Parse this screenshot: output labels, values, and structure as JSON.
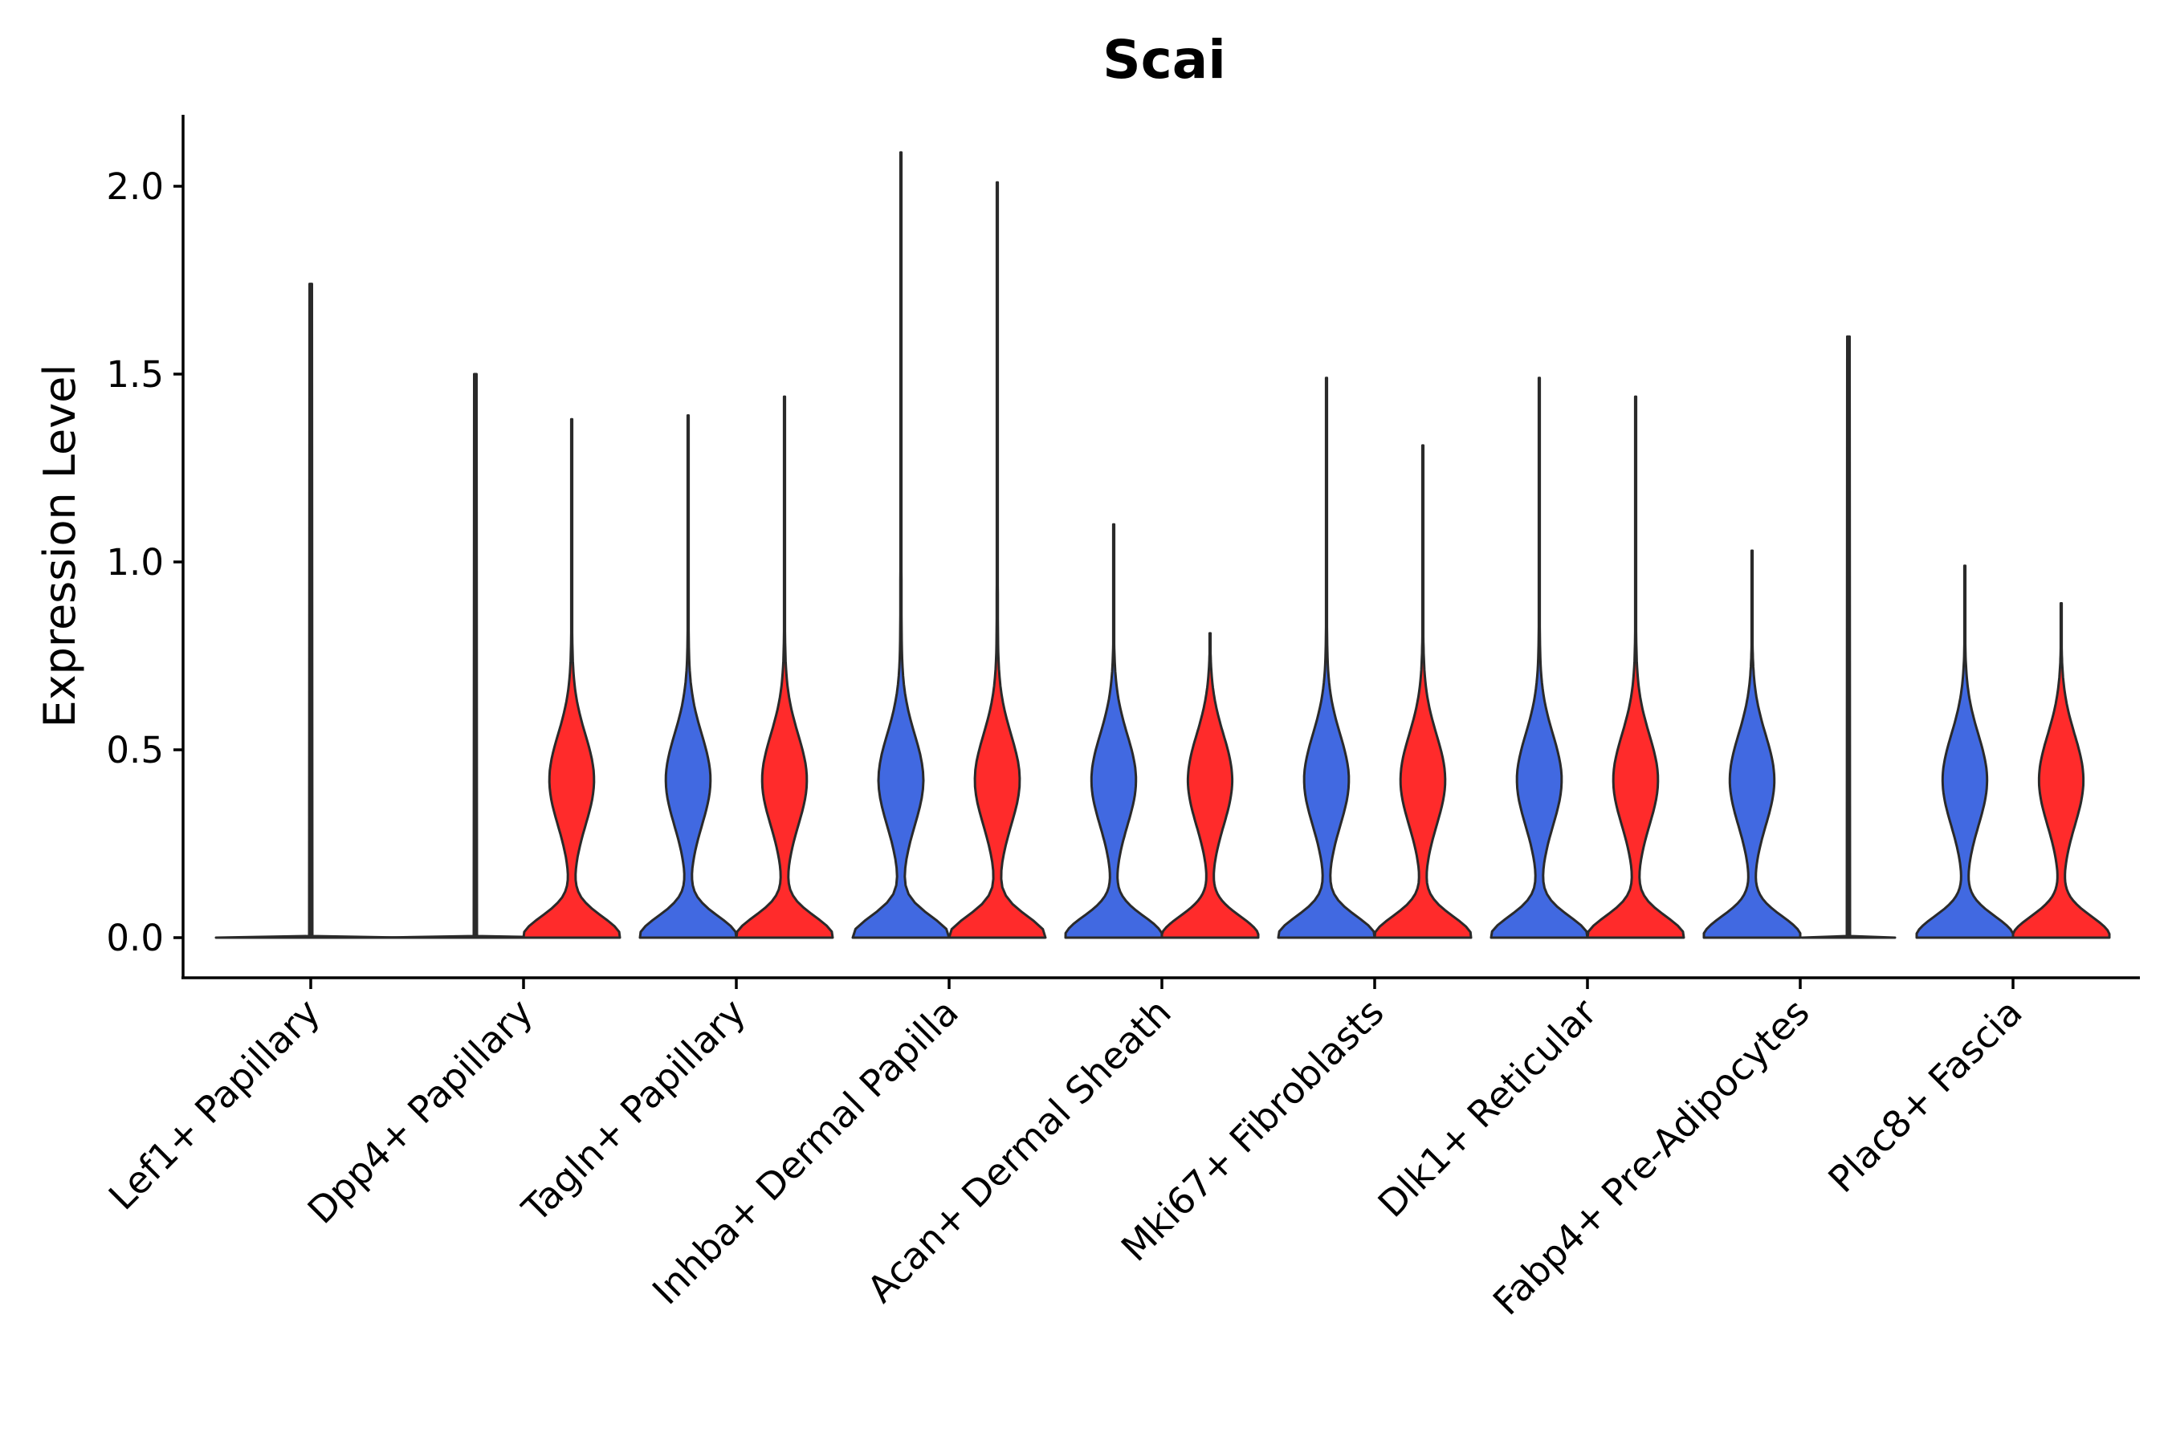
{
  "chart_data": {
    "type": "violin",
    "title": "Scai",
    "xlabel": "",
    "ylabel": "Expression Level",
    "ylim": [
      -0.1,
      2.2
    ],
    "yticks": [
      0.0,
      0.5,
      1.0,
      1.5,
      2.0
    ],
    "ytick_labels": [
      "0.0",
      "0.5",
      "1.0",
      "1.5",
      "2.0"
    ],
    "grid": false,
    "legend": "none",
    "colors": {
      "group1": "#4169e1",
      "group2": "#ff2b2b",
      "outline": "#2a2a2a"
    },
    "categories": [
      "Lef1+ Papillary",
      "Dpp4+ Papillary",
      "Tagln+ Papillary",
      "Inhba+ Dermal Papilla",
      "Acan+ Dermal Sheath",
      "Mki67+ Fibroblasts",
      "Dlk1+ Reticular",
      "Fabp4+ Pre-Adipocytes",
      "Plac8+ Fascia"
    ],
    "series": [
      {
        "name": "group1",
        "color": "#4169e1",
        "max_values": [
          1.74,
          1.5,
          1.39,
          2.09,
          1.1,
          1.49,
          1.49,
          1.03,
          0.99
        ],
        "shape": [
          "flat",
          "flat",
          "bimodal",
          "bimodal",
          "bimodal",
          "bimodal",
          "bimodal",
          "bimodal",
          "bimodal"
        ]
      },
      {
        "name": "group2",
        "color": "#ff2b2b",
        "max_values": [
          null,
          1.38,
          1.44,
          2.01,
          0.81,
          1.31,
          1.44,
          1.6,
          0.89
        ],
        "shape": [
          "none",
          "bimodal",
          "bimodal",
          "bimodal",
          "bimodal",
          "bimodal",
          "bimodal",
          "flat",
          "bimodal"
        ]
      }
    ]
  }
}
